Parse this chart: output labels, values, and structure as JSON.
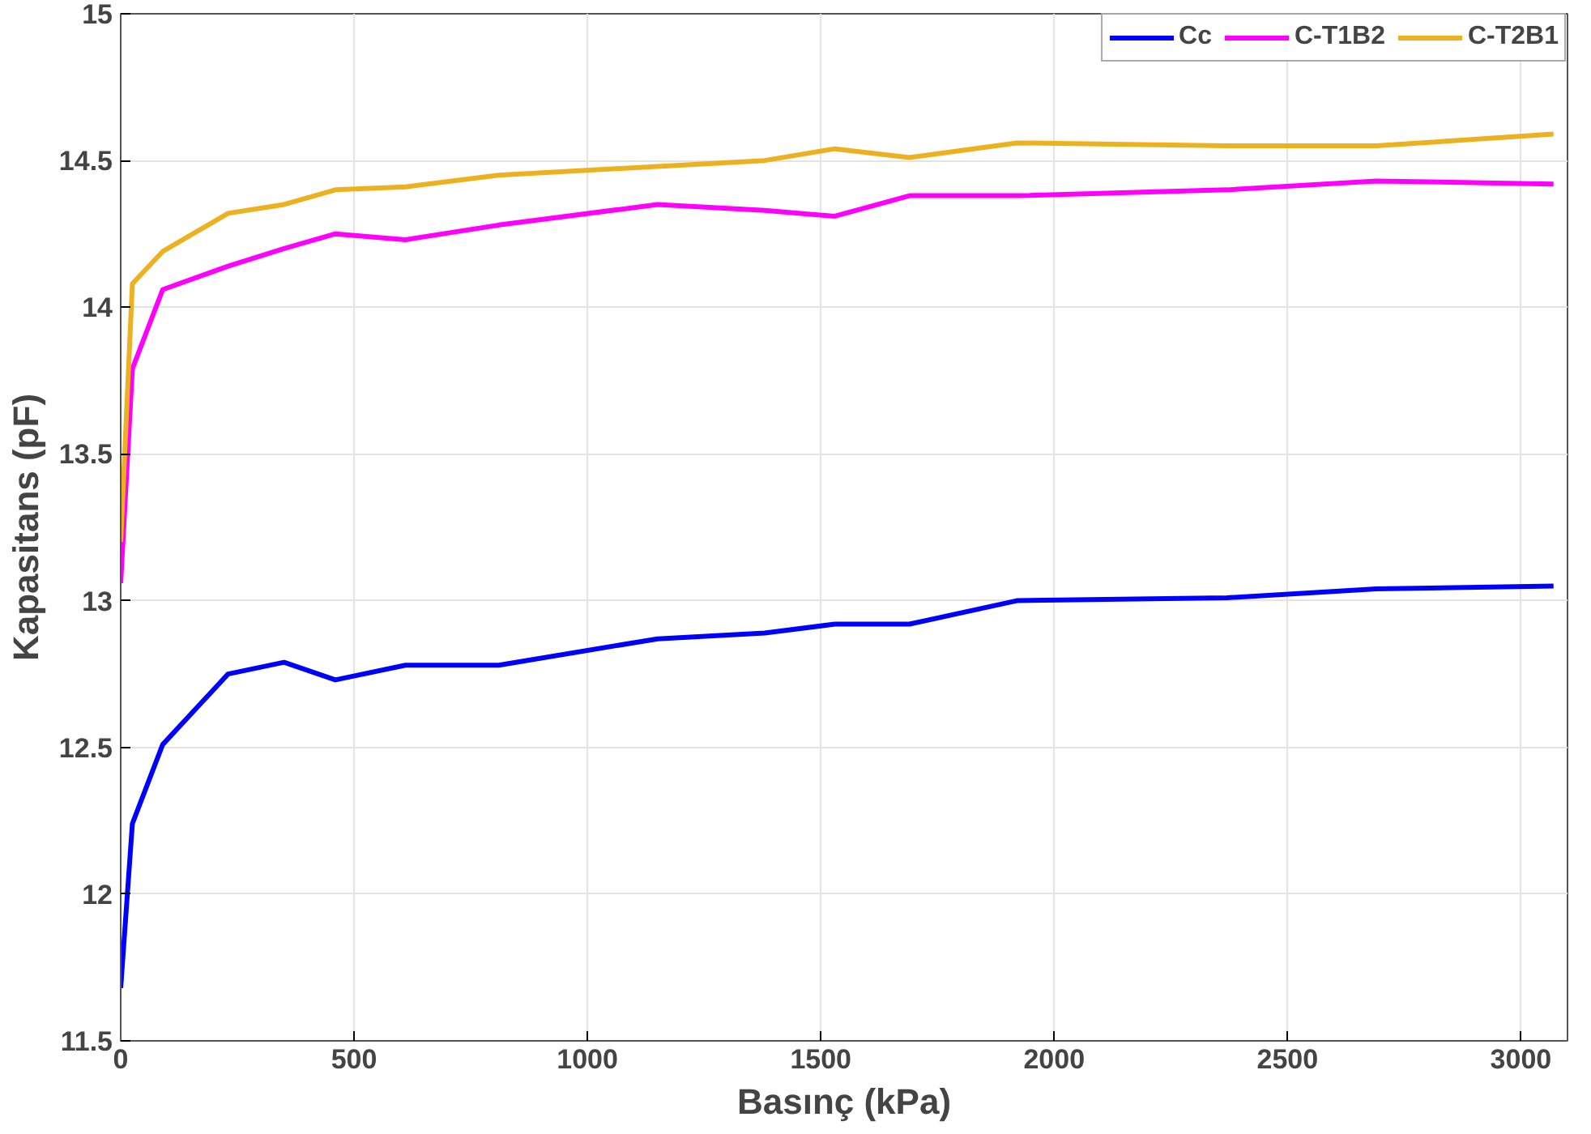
{
  "chart_data": {
    "type": "line",
    "xlabel": "Basınç (kPa)",
    "ylabel": "Kapasitans (pF)",
    "x": [
      0,
      25,
      90,
      230,
      350,
      460,
      610,
      810,
      1150,
      1380,
      1530,
      1690,
      1920,
      2370,
      2690,
      3070
    ],
    "series": [
      {
        "name": "Cc",
        "color": "#0000ff",
        "values": [
          11.68,
          12.24,
          12.51,
          12.75,
          12.79,
          12.73,
          12.78,
          12.78,
          12.87,
          12.89,
          12.92,
          12.92,
          13.0,
          13.01,
          13.04,
          13.05
        ]
      },
      {
        "name": "C-T1B2",
        "color": "#ff00ff",
        "values": [
          13.06,
          13.79,
          14.06,
          14.14,
          14.2,
          14.25,
          14.23,
          14.28,
          14.35,
          14.33,
          14.31,
          14.38,
          14.38,
          14.4,
          14.43,
          14.42
        ]
      },
      {
        "name": "C-T2B1",
        "color": "#edb120",
        "values": [
          13.2,
          14.08,
          14.19,
          14.32,
          14.35,
          14.4,
          14.41,
          14.45,
          14.48,
          14.5,
          14.54,
          14.51,
          14.56,
          14.55,
          14.55,
          14.59
        ]
      }
    ],
    "xlim": [
      0,
      3100
    ],
    "xticks": [
      0,
      500,
      1000,
      1500,
      2000,
      2500,
      3000
    ],
    "ylim": [
      11.5,
      15
    ],
    "yticks": [
      11.5,
      12,
      12.5,
      13,
      13.5,
      14,
      14.5,
      15
    ],
    "grid": true,
    "legend": "top right",
    "line_style": "solid",
    "marker": "none"
  }
}
